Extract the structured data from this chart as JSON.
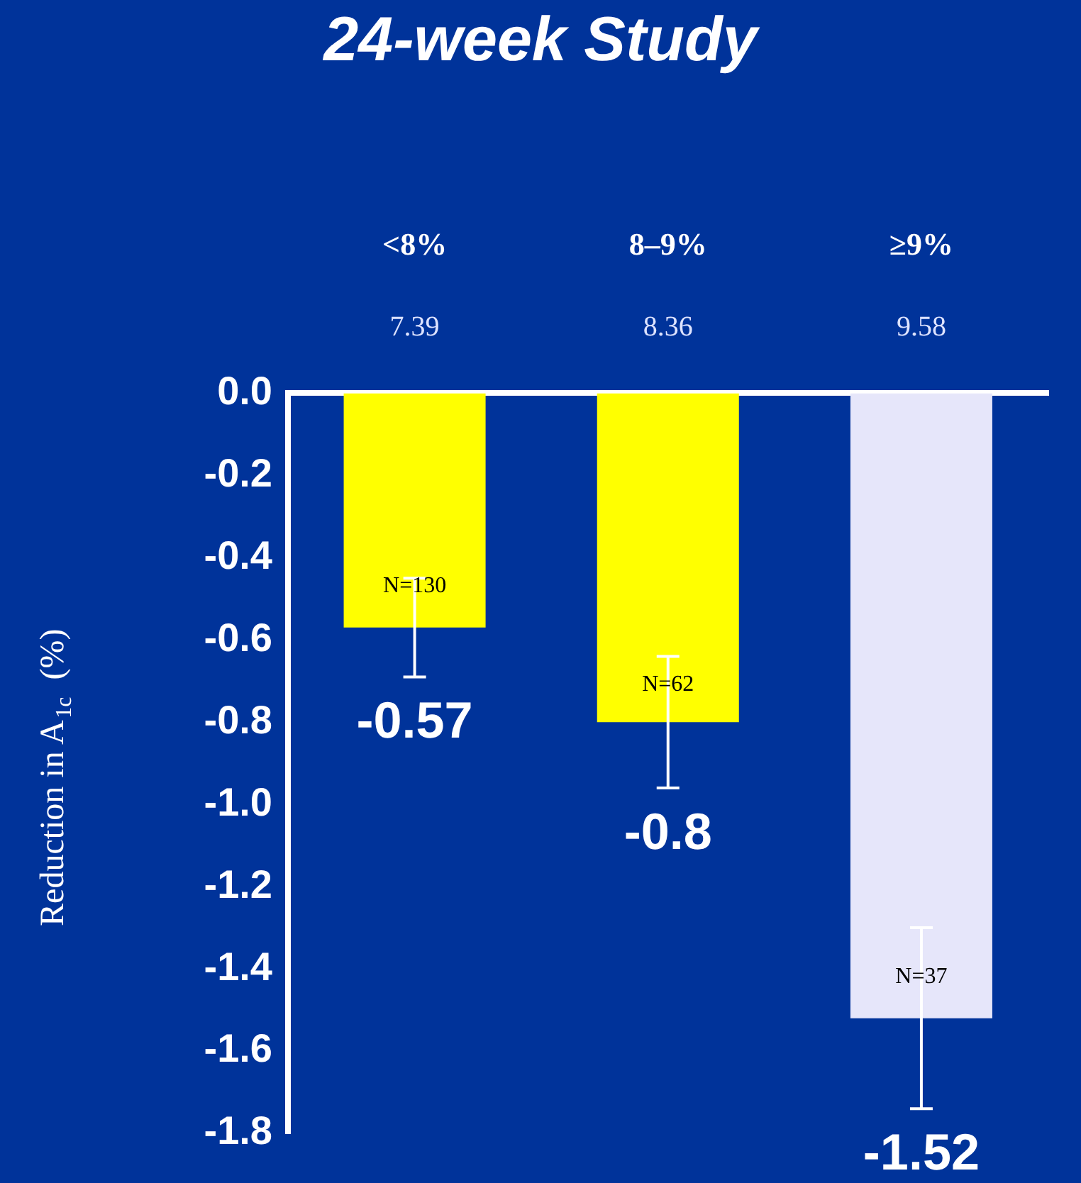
{
  "chart_data": {
    "type": "bar",
    "title": "24-week Study",
    "ylabel": "Reduction in A$_{1c}$  (%)",
    "categories": [
      "<8%",
      "8–9%",
      "≥9%"
    ],
    "values": [
      -0.57,
      -0.8,
      -1.52
    ],
    "colors": [
      "#ffff00",
      "#ffff00",
      "#e6e6fa"
    ],
    "errors": [
      0.12,
      0.16,
      0.22
    ],
    "data_labels": true,
    "ylim": [
      -1.8,
      0
    ],
    "yticks": [
      {
        "value": 0,
        "label": "0.0"
      },
      -0.2,
      -0.4,
      -0.6,
      -0.8,
      {
        "value": -1,
        "label": "-1.0"
      },
      -1.2,
      -1.4,
      -1.6,
      -1.8
    ],
    "legend": false,
    "annotations": [
      "7.39",
      "8.36",
      "9.58",
      {
        "text": "N=130",
        "x": "<8%",
        "y": -0.47
      },
      {
        "text": "N=62",
        "x": "8–9%",
        "y": -0.71
      },
      {
        "text": "N=37",
        "x": "≥9%",
        "y": -1.42
      }
    ]
  }
}
